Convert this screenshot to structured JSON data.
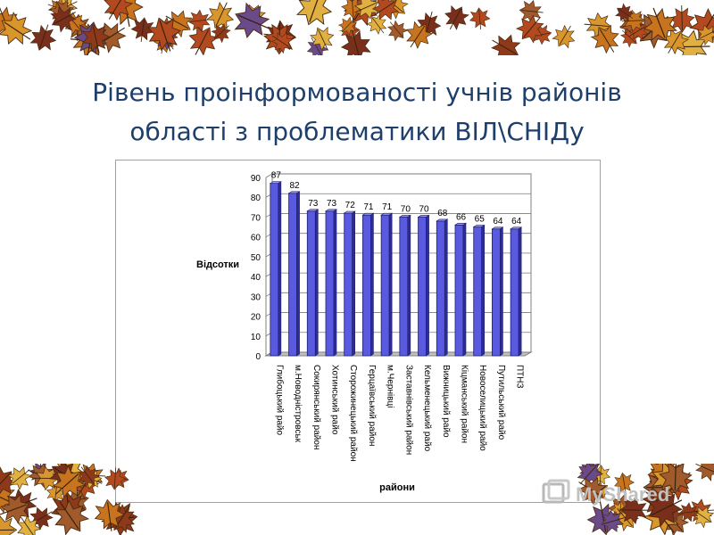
{
  "slide": {
    "title_line1": "Рівень проінформованості учнів районів",
    "title_line2": "області з проблематики ВІЛ\\СНІДу"
  },
  "watermark": {
    "text": "MyShared"
  },
  "colors": {
    "bar": "#5a5ae0",
    "bar_top": "#9c9cf0",
    "bar_side": "#2d2d9a",
    "title": "#1f3f6b"
  },
  "chart_data": {
    "type": "bar",
    "title": "",
    "xlabel": "райони",
    "ylabel": "Відсотки",
    "ylim": [
      0,
      90
    ],
    "yticks": [
      "0",
      "10",
      "20",
      "30",
      "40",
      "50",
      "60",
      "70",
      "80",
      "90"
    ],
    "grid": true,
    "legend": "none",
    "categories": [
      "Глибоцький райо",
      "м.Новодністровськ",
      "Сокирянський район",
      "Хотинський райо",
      "Сторожинецький район",
      "Герцаївський район",
      "м.Чернівці",
      "Заставнівський район",
      "Кельменецький райо",
      "Вижницький райо",
      "Кіцманський район",
      "Новоселицький райо",
      "Путильський райо",
      "ПТНЗ"
    ],
    "values": [
      87,
      82,
      73,
      73,
      72,
      71,
      71,
      70,
      70,
      68,
      66,
      65,
      64,
      64
    ]
  }
}
